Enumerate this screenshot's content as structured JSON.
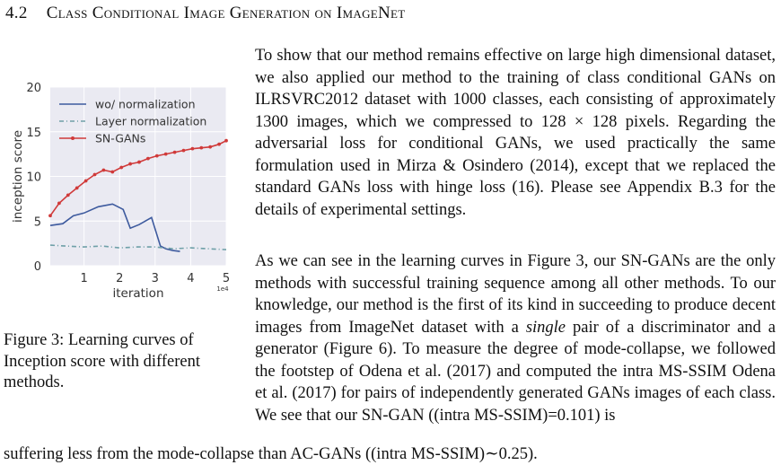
{
  "section": {
    "number": "4.2",
    "title": "Class Conditional Image Generation on ImageNet"
  },
  "figure": {
    "caption": "Figure 3:  Learning curves of Inception score with different methods."
  },
  "chart_data": {
    "type": "line",
    "xlabel": "iteration",
    "ylabel": "inception score",
    "x_exponent_label": "1e4",
    "xlim": [
      0.05,
      5.0
    ],
    "ylim": [
      0,
      20
    ],
    "xticks": [
      1,
      2,
      3,
      4,
      5
    ],
    "yticks": [
      0,
      5,
      10,
      15,
      20
    ],
    "grid": true,
    "legend_position": "top-left",
    "series": [
      {
        "name": "wo/ normalization",
        "color": "#3d5a9e",
        "style": "solid",
        "x": [
          0.05,
          0.4,
          0.7,
          1.0,
          1.4,
          1.8,
          2.1,
          2.3,
          2.55,
          2.9,
          3.15,
          3.3,
          3.5,
          3.7
        ],
        "y": [
          4.5,
          4.7,
          5.6,
          5.9,
          6.6,
          6.9,
          6.3,
          4.2,
          4.6,
          5.4,
          2.2,
          1.9,
          1.7,
          1.6
        ]
      },
      {
        "name": "Layer normalization",
        "color": "#6fa0a8",
        "style": "dash-dot",
        "x": [
          0.05,
          0.5,
          1.0,
          1.5,
          2.0,
          2.5,
          3.0,
          3.5,
          4.0,
          4.5,
          5.0
        ],
        "y": [
          2.3,
          2.2,
          2.1,
          2.2,
          2.0,
          2.1,
          2.1,
          1.9,
          2.0,
          1.9,
          1.8
        ]
      },
      {
        "name": "SN-GANs",
        "color": "#d03a3a",
        "style": "solid-marker",
        "x": [
          0.05,
          0.3,
          0.55,
          0.8,
          1.05,
          1.3,
          1.55,
          1.8,
          2.05,
          2.3,
          2.55,
          2.8,
          3.05,
          3.3,
          3.55,
          3.8,
          4.05,
          4.3,
          4.55,
          4.8,
          5.0
        ],
        "y": [
          5.6,
          7.0,
          7.9,
          8.7,
          9.5,
          10.2,
          10.7,
          10.5,
          11.0,
          11.4,
          11.6,
          12.0,
          12.3,
          12.5,
          12.7,
          12.9,
          13.1,
          13.2,
          13.3,
          13.6,
          14.0
        ]
      }
    ]
  },
  "paragraphs": {
    "p1": "To show that our method remains effective on large high dimensional dataset, we also applied our method to the training of class conditional GANs on ILRSVRC2012 dataset with 1000 classes, each consisting of approximately 1300 images, which we compressed to 128 × 128 pixels.  Regarding the adversarial loss for conditional GANs, we used practically the same formulation used in Mirza & Osindero (2014), except that we replaced the standard GANs loss with hinge loss (16).  Please see Appendix B.3 for the details of experimental settings.",
    "p2_a": "As we can see in the learning curves in Figure 3, our SN-GANs are the only methods with successful training sequence among all other methods. To our knowledge, our method is the first of its kind in succeeding to produce decent images from ImageNet dataset with a ",
    "p2_em": "single",
    "p2_b": " pair of a discriminator and a generator (Figure 6). To measure the degree of mode-collapse, we followed the footstep of Odena et al. (2017) and computed the intra MS-SSIM Odena et al. (2017) for pairs of independently generated GANs images of each class. We see that our SN-GAN ((intra MS-SSIM)=0.101) is",
    "p2_tail": "suffering less from the mode-collapse than AC-GANs ((intra MS-SSIM)∼0.25)."
  }
}
